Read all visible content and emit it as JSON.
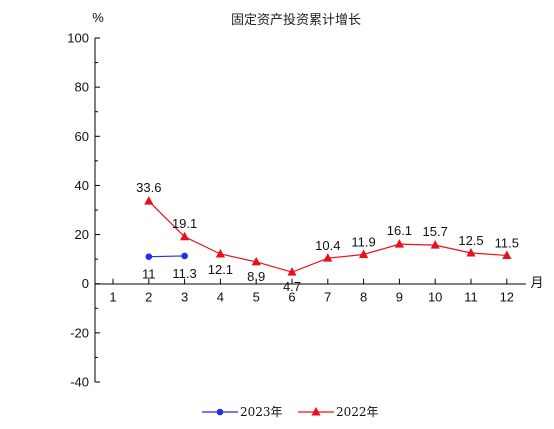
{
  "chart_data": {
    "type": "line",
    "title": "固定资产投资累计增长",
    "y_unit": "%",
    "x_unit": "月",
    "ylim": [
      -40,
      100
    ],
    "y_ticks": [
      "-40",
      "-20",
      "0",
      "20",
      "40",
      "60",
      "80",
      "100"
    ],
    "categories": [
      "1",
      "2",
      "3",
      "4",
      "5",
      "6",
      "7",
      "8",
      "9",
      "10",
      "11",
      "12"
    ],
    "grid": false,
    "legend_position": "bottom",
    "series": [
      {
        "name": "2023年",
        "color": "#1f2ee8",
        "marker": "circle",
        "x": [
          "2",
          "3"
        ],
        "values": [
          11,
          11.3
        ],
        "labels": [
          "11",
          "11.3"
        ]
      },
      {
        "name": "2022年",
        "color": "#e8101a",
        "marker": "triangle",
        "x": [
          "2",
          "3",
          "4",
          "5",
          "6",
          "7",
          "8",
          "9",
          "10",
          "11",
          "12"
        ],
        "values": [
          33.6,
          19.1,
          12.1,
          8.9,
          4.7,
          10.4,
          11.9,
          16.1,
          15.7,
          12.5,
          11.5
        ],
        "labels": [
          "33.6",
          "19.1",
          "12.1",
          "8.9",
          "4.7",
          "10.4",
          "11.9",
          "16.1",
          "15.7",
          "12.5",
          "11.5"
        ]
      }
    ]
  }
}
